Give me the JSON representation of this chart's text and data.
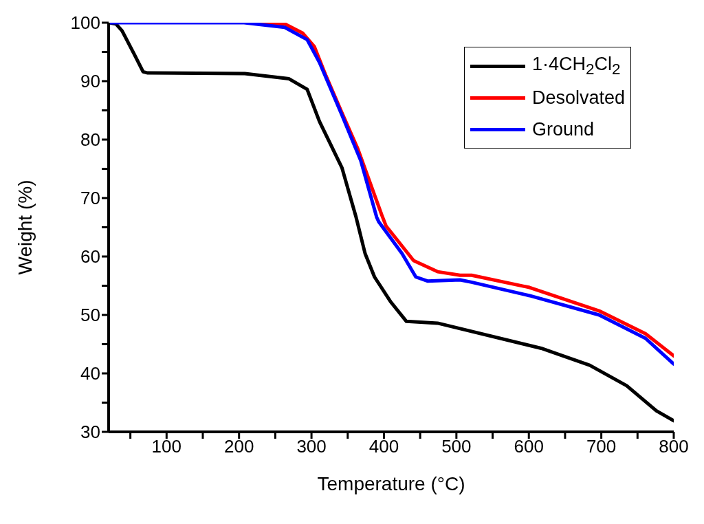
{
  "chart_data": {
    "type": "line",
    "xlabel": "Temperature (°C)",
    "ylabel": "Weight (%)",
    "xlim": [
      20,
      800
    ],
    "ylim": [
      30,
      100
    ],
    "xticks": [
      {
        "value": 50,
        "label": null
      },
      100,
      {
        "value": 150,
        "label": null
      },
      200,
      {
        "value": 250,
        "label": null
      },
      300,
      {
        "value": 350,
        "label": null
      },
      400,
      {
        "value": 450,
        "label": null
      },
      500,
      {
        "value": 550,
        "label": null
      },
      600,
      {
        "value": 650,
        "label": null
      },
      700,
      {
        "value": 750,
        "label": null
      },
      800
    ],
    "yticks": [
      30,
      {
        "value": 35,
        "label": null
      },
      40,
      {
        "value": 45,
        "label": null
      },
      50,
      {
        "value": 55,
        "label": null
      },
      60,
      {
        "value": 65,
        "label": null
      },
      70,
      {
        "value": 75,
        "label": null
      },
      80,
      {
        "value": 85,
        "label": null
      },
      90,
      {
        "value": 95,
        "label": null
      },
      100
    ],
    "grid": false,
    "legend": "top right",
    "marker": "none",
    "line_style": "solid",
    "series": [
      {
        "name": "1·4CH$_{2}$Cl$_{2}$",
        "color": "#000000",
        "x": [
          20,
          30,
          38.6,
          55,
          67.6,
          74,
          208,
          269,
          294,
          311,
          342,
          361.6,
          374,
          387,
          409,
          431,
          474,
          617,
          684,
          735,
          776,
          800
        ],
        "values": [
          100,
          99.8,
          98.6,
          94.7,
          91.6,
          91.4,
          91.3,
          90.4,
          88.6,
          83.1,
          75.2,
          66.7,
          60.5,
          56.5,
          52.3,
          48.9,
          48.6,
          44.3,
          41.4,
          37.9,
          33.6,
          31.9
        ]
      },
      {
        "name": "Desolvated",
        "color": "#ff0000",
        "x": [
          230,
          263,
          288,
          304,
          320,
          342,
          364,
          397,
          403,
          441,
          474,
          505,
          521,
          601,
          697,
          761,
          800
        ],
        "values": [
          100,
          99.8,
          98.2,
          95.9,
          90.9,
          84.6,
          78.4,
          67.1,
          65.2,
          59.3,
          57.4,
          56.8,
          56.8,
          54.7,
          50.7,
          46.8,
          43.0
        ]
      },
      {
        "name": "Ground",
        "color": "#0000ff",
        "x": [
          20,
          207,
          263,
          294,
          311,
          342,
          368,
          390,
          393,
          425,
          444,
          460,
          505,
          521,
          601,
          697,
          761,
          800
        ],
        "values": [
          100,
          100,
          99.2,
          97.1,
          93.2,
          84.2,
          76.4,
          66.7,
          65.9,
          60.5,
          56.5,
          55.8,
          56.0,
          55.6,
          53.3,
          50.0,
          46.0,
          41.6
        ]
      }
    ]
  }
}
